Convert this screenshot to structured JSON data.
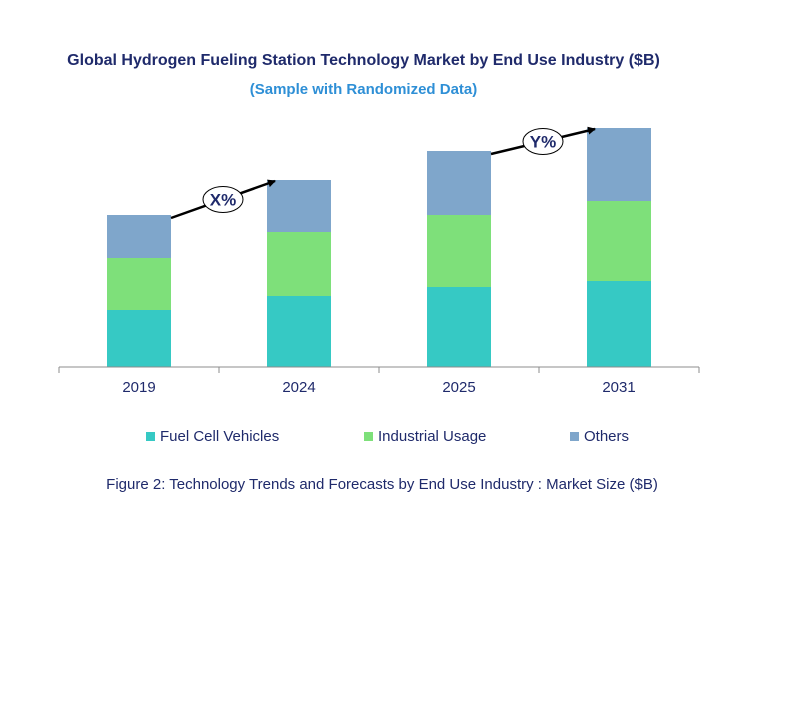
{
  "chart_data": {
    "type": "bar",
    "stacked": true,
    "title": "Global Hydrogen Fueling Station Technology Market by End Use Industry ($B)",
    "subtitle": "(Sample with Randomized Data)",
    "categories": [
      "2019",
      "2024",
      "2025",
      "2031"
    ],
    "series": [
      {
        "name": "Fuel Cell Vehicles",
        "color": "#36c9c4",
        "values": [
          57,
          71,
          80,
          86
        ]
      },
      {
        "name": "Industrial Usage",
        "color": "#7ee07a",
        "values": [
          52,
          64,
          72,
          80
        ]
      },
      {
        "name": "Others",
        "color": "#7fa6cb",
        "values": [
          43,
          52,
          64,
          73
        ]
      }
    ],
    "annotations": [
      {
        "label": "X%",
        "from": "2019",
        "to": "2024"
      },
      {
        "label": "Y%",
        "from": "2025",
        "to": "2031"
      }
    ],
    "ylim": [
      0,
      240
    ],
    "grid": false,
    "legend_position": "bottom",
    "caption": "Figure 2: Technology  Trends  and Forecasts by End Use Industry  : Market Size ($B)"
  }
}
